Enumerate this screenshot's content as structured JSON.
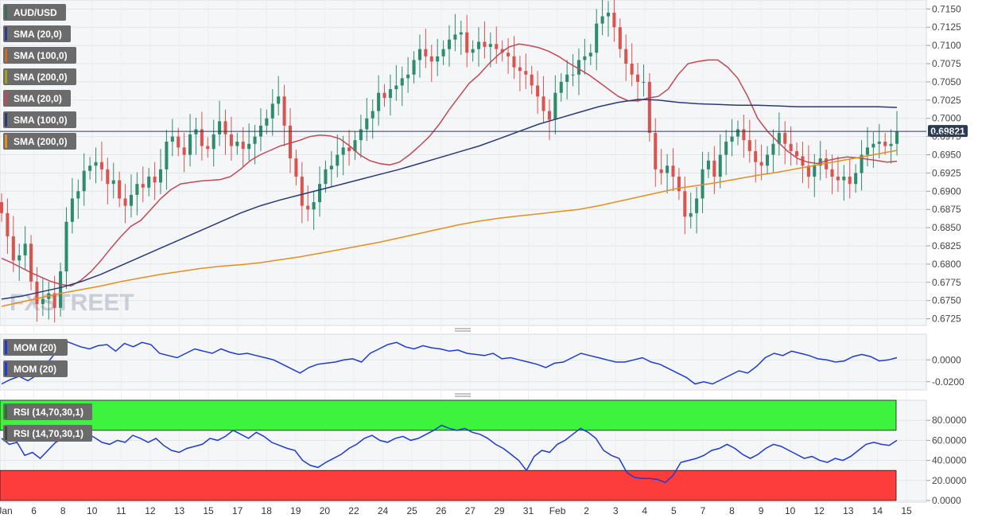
{
  "chart_data": [
    {
      "type": "candlestick",
      "symbol": "AUD/USD",
      "ylim": [
        0.6718,
        0.7158
      ],
      "y_ticks": [
        "0.7150",
        "0.7125",
        "0.7100",
        "0.7075",
        "0.7050",
        "0.7025",
        "0.7000",
        "0.6975",
        "0.6950",
        "0.6925",
        "0.6900",
        "0.6875",
        "0.6850",
        "0.6825",
        "0.6800",
        "0.6775",
        "0.6750",
        "0.6725"
      ],
      "x_tick_labels": [
        "Jan",
        "6",
        "8",
        "10",
        "11",
        "12",
        "13",
        "15",
        "17",
        "18",
        "19",
        "20",
        "22",
        "24",
        "25",
        "26",
        "27",
        "29",
        "31",
        "Feb",
        "2",
        "3",
        "4",
        "5",
        "7",
        "8",
        "9",
        "10",
        "12",
        "13",
        "14",
        "15"
      ],
      "current_price": 0.69821,
      "current_price_label": "0.69821",
      "watermark": "FXSTREET",
      "legend": [
        {
          "label": "AUD/USD",
          "color": "#3a6b5c"
        },
        {
          "label": "SMA (20,0)",
          "color": "#2e3a8c"
        },
        {
          "label": "SMA (100,0)",
          "color": "#d06a20"
        },
        {
          "label": "SMA (200,0)",
          "color": "#a0a020"
        },
        {
          "label": "SMA (20,0)",
          "color": "#c04a55"
        },
        {
          "label": "SMA (100,0)",
          "color": "#2a3a78"
        },
        {
          "label": "SMA (200,0)",
          "color": "#e09020"
        }
      ],
      "closes": [
        0.687,
        0.6838,
        0.6805,
        0.6812,
        0.6828,
        0.6776,
        0.6745,
        0.6752,
        0.676,
        0.674,
        0.679,
        0.6858,
        0.689,
        0.69,
        0.6928,
        0.6935,
        0.694,
        0.693,
        0.691,
        0.6915,
        0.689,
        0.688,
        0.6895,
        0.691,
        0.6905,
        0.692,
        0.6912,
        0.693,
        0.6968,
        0.6975,
        0.696,
        0.695,
        0.6978,
        0.6985,
        0.6962,
        0.6958,
        0.6978,
        0.6996,
        0.6978,
        0.6962,
        0.6968,
        0.6958,
        0.6965,
        0.6975,
        0.699,
        0.7,
        0.702,
        0.703,
        0.699,
        0.6945,
        0.692,
        0.688,
        0.6875,
        0.6885,
        0.691,
        0.693,
        0.6935,
        0.695,
        0.696,
        0.6955,
        0.697,
        0.6985,
        0.7,
        0.701,
        0.7035,
        0.7028,
        0.704,
        0.7045,
        0.7055,
        0.706,
        0.708,
        0.7095,
        0.7085,
        0.7078,
        0.7085,
        0.7095,
        0.7108,
        0.7115,
        0.7118,
        0.709,
        0.7095,
        0.7105,
        0.7098,
        0.7102,
        0.7095,
        0.709,
        0.7085,
        0.707,
        0.7065,
        0.706,
        0.7045,
        0.703,
        0.701,
        0.6998,
        0.7035,
        0.705,
        0.706,
        0.706,
        0.708,
        0.7085,
        0.709,
        0.713,
        0.714,
        0.7145,
        0.7125,
        0.7095,
        0.7075,
        0.706,
        0.705,
        0.705,
        0.698,
        0.693,
        0.6925,
        0.6935,
        0.692,
        0.69,
        0.6865,
        0.687,
        0.689,
        0.693,
        0.6942,
        0.692,
        0.695,
        0.6968,
        0.6975,
        0.6985,
        0.697,
        0.6955,
        0.694,
        0.6935,
        0.695,
        0.6965,
        0.698,
        0.6965,
        0.6955,
        0.6948,
        0.6935,
        0.692,
        0.6935,
        0.6945,
        0.693,
        0.692,
        0.6915,
        0.692,
        0.691,
        0.6925,
        0.695,
        0.696,
        0.6965,
        0.6968,
        0.6962,
        0.6965,
        0.6982
      ],
      "sma20": [
        0.6808,
        0.6802,
        0.6795,
        0.6788,
        0.6782,
        0.6776,
        0.6772,
        0.677,
        0.6778,
        0.679,
        0.6805,
        0.6822,
        0.6838,
        0.6852,
        0.686,
        0.6875,
        0.689,
        0.6902,
        0.691,
        0.6912,
        0.6914,
        0.6915,
        0.6916,
        0.692,
        0.693,
        0.6942,
        0.695,
        0.6956,
        0.6962,
        0.6966,
        0.697,
        0.6975,
        0.6977,
        0.6976,
        0.6972,
        0.6962,
        0.695,
        0.6942,
        0.6938,
        0.6936,
        0.694,
        0.695,
        0.6962,
        0.6975,
        0.6992,
        0.7012,
        0.703,
        0.7048,
        0.706,
        0.7075,
        0.7088,
        0.7098,
        0.7102,
        0.71,
        0.7097,
        0.7092,
        0.7085,
        0.7076,
        0.7068,
        0.706,
        0.705,
        0.704,
        0.703,
        0.7024,
        0.7024,
        0.7028,
        0.703,
        0.704,
        0.706,
        0.7075,
        0.7078,
        0.708,
        0.708,
        0.707,
        0.7055,
        0.703,
        0.7,
        0.6982,
        0.6968,
        0.6955,
        0.6945,
        0.694,
        0.6938,
        0.6942,
        0.6945,
        0.6947,
        0.6946,
        0.6944,
        0.6942,
        0.694,
        0.6941
      ],
      "sma100": [
        0.6752,
        0.6756,
        0.6762,
        0.6768,
        0.6776,
        0.6786,
        0.6798,
        0.681,
        0.6822,
        0.6834,
        0.6846,
        0.6858,
        0.687,
        0.688,
        0.6888,
        0.6895,
        0.6902,
        0.6909,
        0.6916,
        0.6923,
        0.693,
        0.6938,
        0.6946,
        0.6954,
        0.6962,
        0.6972,
        0.6982,
        0.6992,
        0.7,
        0.7008,
        0.7016,
        0.7022,
        0.7026,
        0.7025,
        0.7022,
        0.702,
        0.7019,
        0.7018,
        0.7018,
        0.7017,
        0.7016,
        0.7016,
        0.7016,
        0.7016,
        0.7016,
        0.7015
      ],
      "sma200": [
        0.6742,
        0.6748,
        0.6754,
        0.676,
        0.6765,
        0.677,
        0.6776,
        0.6781,
        0.6786,
        0.679,
        0.6794,
        0.6797,
        0.6799,
        0.6802,
        0.6806,
        0.681,
        0.6815,
        0.682,
        0.6825,
        0.683,
        0.6836,
        0.6842,
        0.6848,
        0.6854,
        0.6859,
        0.6863,
        0.6866,
        0.6869,
        0.6872,
        0.6875,
        0.688,
        0.6886,
        0.6892,
        0.6898,
        0.6904,
        0.6908,
        0.6912,
        0.6917,
        0.6922,
        0.6926,
        0.6931,
        0.6936,
        0.6941,
        0.6946,
        0.6951,
        0.6956
      ]
    },
    {
      "type": "line",
      "indicator": "MOM (20)",
      "legend": [
        "MOM (20)",
        "MOM (20)"
      ],
      "ylim": [
        -0.026,
        0.022
      ],
      "y_ticks": [
        "0.0000",
        "-0.0200"
      ],
      "values": [
        -0.022,
        -0.018,
        -0.015,
        -0.019,
        -0.014,
        -0.005,
        0.005,
        0.018,
        0.015,
        0.012,
        0.01,
        0.013,
        0.014,
        0.008,
        0.015,
        0.012,
        0.016,
        0.014,
        0.006,
        0.004,
        0.002,
        0.006,
        0.01,
        0.008,
        0.006,
        0.01,
        0.007,
        0.005,
        0.006,
        0.004,
        0.002,
        0.0,
        -0.004,
        -0.008,
        -0.012,
        -0.007,
        -0.004,
        -0.003,
        -0.002,
        0.0,
        0.001,
        -0.002,
        0.006,
        0.01,
        0.014,
        0.016,
        0.012,
        0.01,
        0.013,
        0.011,
        0.01,
        0.008,
        0.009,
        0.006,
        0.005,
        0.004,
        0.006,
        0.001,
        0.002,
        0.0,
        -0.002,
        -0.004,
        -0.007,
        -0.003,
        -0.002,
        0.002,
        0.006,
        0.004,
        0.002,
        0.0,
        -0.002,
        -0.002,
        0.0,
        0.002,
        -0.002,
        -0.004,
        -0.008,
        -0.012,
        -0.016,
        -0.022,
        -0.02,
        -0.022,
        -0.018,
        -0.014,
        -0.01,
        -0.012,
        -0.006,
        0.002,
        0.006,
        0.004,
        0.008,
        0.006,
        0.004,
        0.001,
        0.0,
        -0.002,
        -0.001,
        0.003,
        0.005,
        0.003,
        -0.001,
        0.0,
        0.002
      ]
    },
    {
      "type": "line",
      "indicator": "RSI (14,70,30,1)",
      "legend": [
        "RSI (14,70,30,1)",
        "RSI (14,70,30,1)"
      ],
      "ylim": [
        0,
        100
      ],
      "overbought": 70,
      "oversold": 30,
      "y_ticks": [
        "80.0000",
        "60.0000",
        "40.0000",
        "20.0000",
        "0.0000"
      ],
      "values": [
        62,
        56,
        58,
        45,
        48,
        42,
        50,
        58,
        62,
        60,
        64,
        67,
        63,
        58,
        56,
        60,
        58,
        65,
        62,
        58,
        62,
        55,
        50,
        48,
        52,
        54,
        56,
        62,
        60,
        64,
        70,
        66,
        62,
        68,
        64,
        58,
        55,
        52,
        50,
        40,
        35,
        33,
        38,
        42,
        46,
        52,
        56,
        62,
        65,
        60,
        58,
        62,
        64,
        60,
        62,
        66,
        70,
        75,
        72,
        70,
        72,
        68,
        66,
        62,
        56,
        52,
        46,
        40,
        30,
        44,
        50,
        48,
        56,
        60,
        66,
        72,
        68,
        62,
        50,
        45,
        42,
        28,
        23,
        22,
        22,
        21,
        18,
        25,
        38,
        40,
        42,
        45,
        50,
        52,
        56,
        52,
        46,
        42,
        46,
        52,
        56,
        54,
        50,
        46,
        42,
        44,
        40,
        38,
        42,
        40,
        44,
        50,
        56,
        58,
        56,
        55,
        60
      ]
    }
  ]
}
